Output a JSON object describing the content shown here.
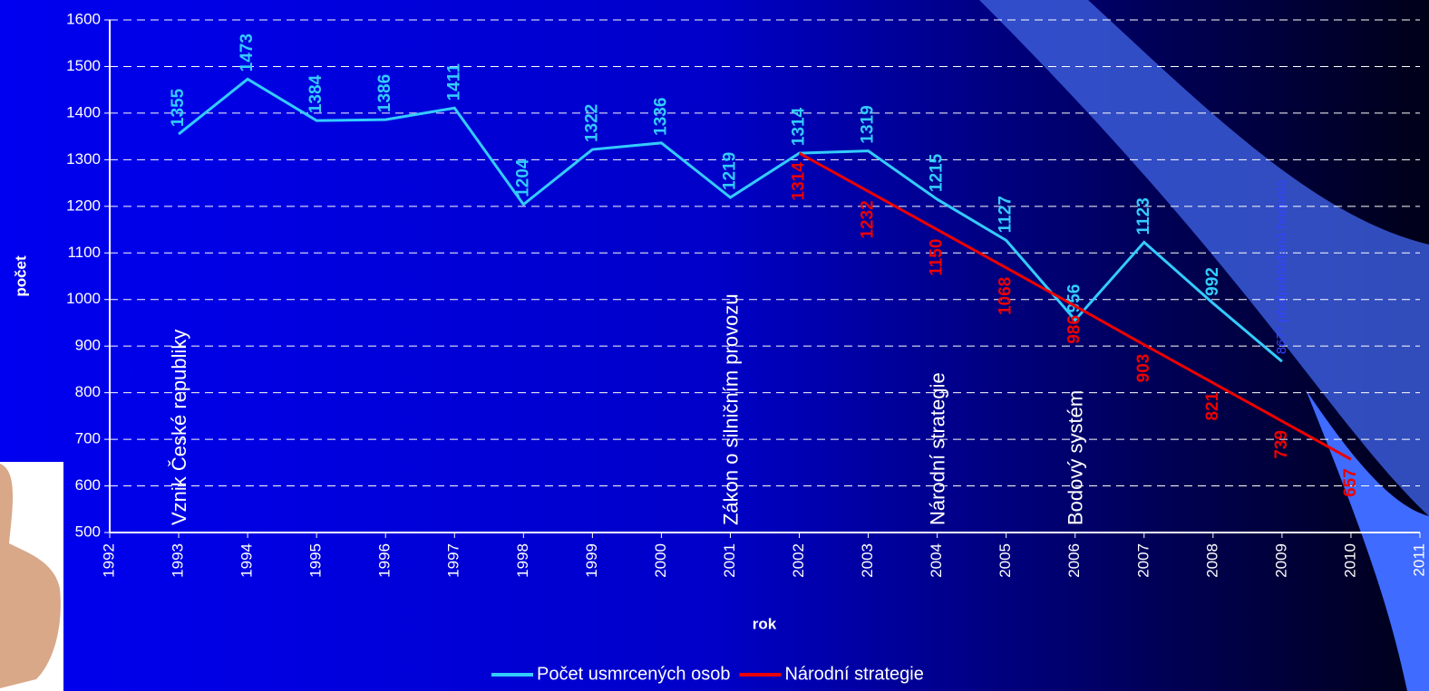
{
  "chart_data": {
    "type": "line",
    "x_label": "rok",
    "y_label": "počet",
    "x": [
      1993,
      1994,
      1995,
      1996,
      1997,
      1998,
      1999,
      2000,
      2001,
      2002,
      2003,
      2004,
      2005,
      2006,
      2007,
      2008,
      2009,
      2010
    ],
    "series": [
      {
        "name": "Počet usmrcených osob",
        "color": "#33ccff",
        "values": [
          1355,
          1473,
          1384,
          1386,
          1411,
          1204,
          1322,
          1336,
          1219,
          1314,
          1319,
          1215,
          1127,
          956,
          1123,
          992,
          867,
          null
        ],
        "value_labels": [
          "1355",
          "1473",
          "1384",
          "1386",
          "1411",
          "1204",
          "1322",
          "1336",
          "1219",
          "1314",
          "1319",
          "1215",
          "1127",
          "956",
          "1123",
          "992",
          "867* předpokládaná hodnota",
          null
        ]
      },
      {
        "name": "Národní strategie",
        "color": "#ee0000",
        "values": [
          null,
          null,
          null,
          null,
          null,
          null,
          null,
          null,
          null,
          1314,
          1232,
          1150,
          1068,
          986,
          903,
          821,
          739,
          657
        ]
      }
    ],
    "xlim": [
      1992,
      2011
    ],
    "xticks": [
      1992,
      1993,
      1994,
      1995,
      1996,
      1997,
      1998,
      1999,
      2000,
      2001,
      2002,
      2003,
      2004,
      2005,
      2006,
      2007,
      2008,
      2009,
      2010,
      2011
    ],
    "ylim": [
      500,
      1600
    ],
    "yticks": [
      500,
      600,
      700,
      800,
      900,
      1000,
      1100,
      1200,
      1300,
      1400,
      1500,
      1600
    ],
    "grid": true,
    "legend": "bottom",
    "annotations": [
      {
        "x": 1993,
        "text": "Vznik České republiky"
      },
      {
        "x": 2001,
        "text": "Zákon o silničním provozu"
      },
      {
        "x": 2004,
        "text": "Národní strategie"
      },
      {
        "x": 2006,
        "text": "Bodový systém"
      }
    ]
  }
}
